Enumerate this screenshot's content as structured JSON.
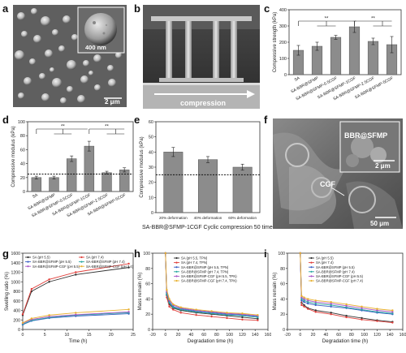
{
  "panel_labels": [
    "a",
    "b",
    "c",
    "d",
    "e",
    "f",
    "g",
    "h",
    "i"
  ],
  "panel_a": {
    "inset_scale": "400 nm",
    "scale": "2 μm"
  },
  "panel_b": {
    "arrow_label": "compression"
  },
  "panel_f": {
    "inset_label": "BBR@SFMP",
    "inset_scale": "2 μm",
    "label_cgf": "CGF",
    "scale": "50 μm"
  },
  "panel_e_caption": "SA-BBR@SFMP-1CGF Cyclic compression 50 times",
  "chart_data": [
    {
      "id": "c",
      "type": "bar",
      "ylabel": "Compressive strength (kPa)",
      "categories": [
        "SA",
        "SA-BBR@SFMP",
        "SA-BBR@SFMP-0.5CGF",
        "SA-BBR@SFMP-1CGF",
        "SA-BBR@SFMP-2.5CGF",
        "SA-BBR@SFMP-5CGF"
      ],
      "values": [
        150,
        175,
        230,
        295,
        205,
        185
      ],
      "errors": [
        30,
        25,
        12,
        35,
        20,
        50
      ],
      "ylim": [
        0,
        400
      ],
      "yticks": [
        0,
        100,
        200,
        300,
        400
      ],
      "significance": [
        "**",
        "**"
      ]
    },
    {
      "id": "d",
      "type": "bar",
      "ylabel": "Compressive modulus (kPa)",
      "categories": [
        "SA",
        "SA-BBR@SFMP",
        "SA-BBR@SFMP-0.5CGF",
        "SA-BBR@SFMP-1CGF",
        "SA-BBR@SFMP-2.5CGF",
        "SA-BBR@SFMP-5CGF"
      ],
      "values": [
        20,
        20,
        47,
        65,
        27,
        31
      ],
      "errors": [
        2,
        2,
        4,
        7,
        2,
        3
      ],
      "ylim": [
        0,
        100
      ],
      "yticks": [
        0,
        20,
        40,
        60,
        80,
        100
      ],
      "reference_line": 25,
      "significance": [
        "**",
        "**"
      ]
    },
    {
      "id": "e",
      "type": "bar",
      "ylabel": "Compressive modulus (kPa)",
      "categories": [
        "20% deformation",
        "40% deformation",
        "60% deformation"
      ],
      "values": [
        40,
        35,
        30
      ],
      "errors": [
        3,
        2,
        2
      ],
      "ylim": [
        0,
        60
      ],
      "yticks": [
        0,
        10,
        20,
        30,
        40,
        50,
        60
      ],
      "reference_line": 25
    },
    {
      "id": "g",
      "type": "line",
      "xlabel": "Time (h)",
      "ylabel": "Swelling ratio (%)",
      "xlim": [
        0,
        25
      ],
      "ylim": [
        0,
        1600
      ],
      "xticks": [
        0,
        5,
        10,
        15,
        20,
        25
      ],
      "yticks": [
        0,
        200,
        400,
        600,
        800,
        1000,
        1200,
        1400,
        1600
      ],
      "x": [
        0,
        2,
        6,
        12,
        24
      ],
      "series": [
        {
          "name": "SA (pH 5.5)",
          "color": "#333333",
          "values": [
            300,
            800,
            1000,
            1150,
            1300
          ]
        },
        {
          "name": "SA (pH 7.4)",
          "color": "#e0403c",
          "values": [
            320,
            850,
            1050,
            1200,
            1380
          ]
        },
        {
          "name": "SA-BBR@SFMP (pH 5.5)",
          "color": "#3b5fc4",
          "values": [
            100,
            180,
            240,
            280,
            330
          ]
        },
        {
          "name": "SA-BBR@SFMP (pH 7.4)",
          "color": "#27a6a0",
          "values": [
            110,
            190,
            250,
            300,
            350
          ]
        },
        {
          "name": "SA-BBR@SFMP-CGF (pH 5.5)",
          "color": "#a855c8",
          "values": [
            130,
            210,
            270,
            310,
            370
          ]
        },
        {
          "name": "SA-BBR@SFMP-CGF (pH 7.4)",
          "color": "#e8b030",
          "values": [
            140,
            230,
            300,
            350,
            420
          ]
        }
      ]
    },
    {
      "id": "h",
      "type": "line",
      "xlabel": "Degradation time (h)",
      "ylabel": "Mass remain (%)",
      "xlim": [
        -20,
        160
      ],
      "ylim": [
        0,
        100
      ],
      "xticks": [
        -20,
        0,
        20,
        40,
        60,
        80,
        100,
        120,
        140,
        160
      ],
      "yticks": [
        0,
        20,
        40,
        60,
        80,
        100
      ],
      "x": [
        0,
        2,
        6,
        12,
        24,
        48,
        72,
        96,
        120,
        144
      ],
      "series": [
        {
          "name": "SA (pH 5.5, TPN)",
          "color": "#333333",
          "values": [
            100,
            45,
            33,
            28,
            25,
            22,
            20,
            18,
            16,
            14
          ]
        },
        {
          "name": "SA (pH 7.4, TPN)",
          "color": "#e0403c",
          "values": [
            100,
            42,
            30,
            26,
            22,
            19,
            17,
            15,
            13,
            12
          ]
        },
        {
          "name": "SA-BBR@SFMP (pH 5.5, TPN)",
          "color": "#3b5fc4",
          "values": [
            100,
            48,
            36,
            30,
            27,
            24,
            22,
            20,
            19,
            17
          ]
        },
        {
          "name": "SA-BBR@SFMP (pH 7.4, TPN)",
          "color": "#27a6a0",
          "values": [
            100,
            46,
            35,
            29,
            26,
            23,
            21,
            19,
            18,
            16
          ]
        },
        {
          "name": "SA-BBR@SFMP-CGF (pH 5.5, TPN)",
          "color": "#a855c8",
          "values": [
            100,
            50,
            38,
            32,
            28,
            25,
            23,
            21,
            20,
            18
          ]
        },
        {
          "name": "SA-BBR@SFMP-CGF (pH 7.4, TPN)",
          "color": "#e8b030",
          "values": [
            100,
            52,
            40,
            33,
            29,
            26,
            24,
            22,
            21,
            19
          ]
        }
      ]
    },
    {
      "id": "i",
      "type": "line",
      "xlabel": "Degradation time (h)",
      "ylabel": "Mass remain (%)",
      "xlim": [
        -20,
        160
      ],
      "ylim": [
        0,
        100
      ],
      "xticks": [
        -20,
        0,
        20,
        40,
        60,
        80,
        100,
        120,
        140,
        160
      ],
      "yticks": [
        0,
        20,
        40,
        60,
        80,
        100
      ],
      "x": [
        0,
        2,
        6,
        12,
        24,
        48,
        72,
        96,
        120,
        144
      ],
      "series": [
        {
          "name": "SA (pH 5.5)",
          "color": "#333333",
          "values": [
            100,
            35,
            32,
            28,
            25,
            22,
            18,
            15,
            12,
            10
          ]
        },
        {
          "name": "SA (pH 7.4)",
          "color": "#e0403c",
          "values": [
            100,
            32,
            30,
            27,
            23,
            20,
            16,
            13,
            11,
            9
          ]
        },
        {
          "name": "SA-BBR@SFMP (pH 5.5)",
          "color": "#3b5fc4",
          "values": [
            100,
            38,
            36,
            34,
            32,
            30,
            28,
            25,
            22,
            20
          ]
        },
        {
          "name": "SA-BBR@SFMP (pH 7.4)",
          "color": "#27a6a0",
          "values": [
            100,
            40,
            38,
            36,
            34,
            32,
            29,
            26,
            23,
            21
          ]
        },
        {
          "name": "SA-BBR@SFMP-CGF (pH 5.5)",
          "color": "#a855c8",
          "values": [
            100,
            42,
            40,
            38,
            36,
            34,
            31,
            28,
            25,
            23
          ]
        },
        {
          "name": "SA-BBR@SFMP-CGF (pH 7.4)",
          "color": "#e8b030",
          "values": [
            100,
            44,
            42,
            40,
            38,
            36,
            33,
            30,
            27,
            25
          ]
        }
      ]
    }
  ]
}
